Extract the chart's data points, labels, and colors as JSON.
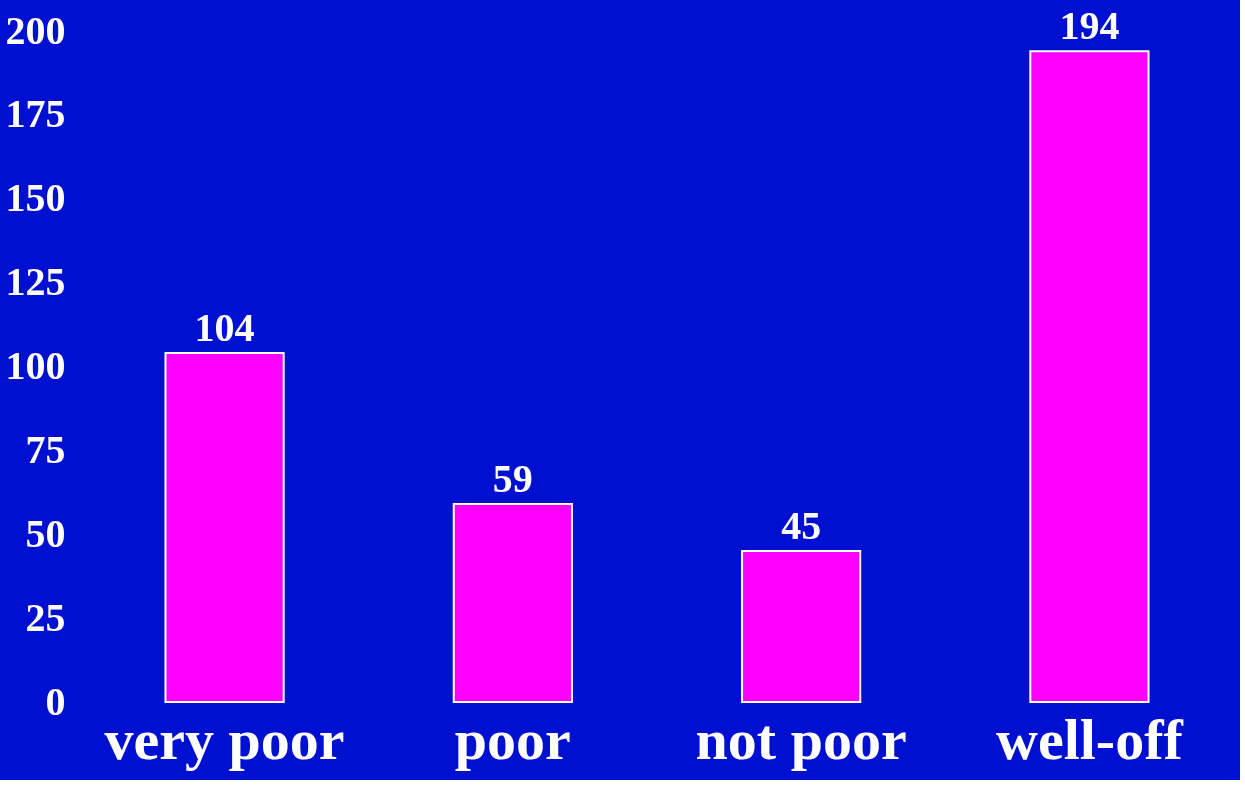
{
  "chart_data": {
    "type": "bar",
    "categories": [
      "very poor",
      "poor",
      "not poor",
      "well-off"
    ],
    "values": [
      104,
      59,
      45,
      194
    ],
    "color": "#ff00ff",
    "ylim": [
      0,
      200
    ],
    "yticks": [
      0,
      25,
      50,
      75,
      100,
      125,
      150,
      175,
      200
    ],
    "data_labels": true
  }
}
